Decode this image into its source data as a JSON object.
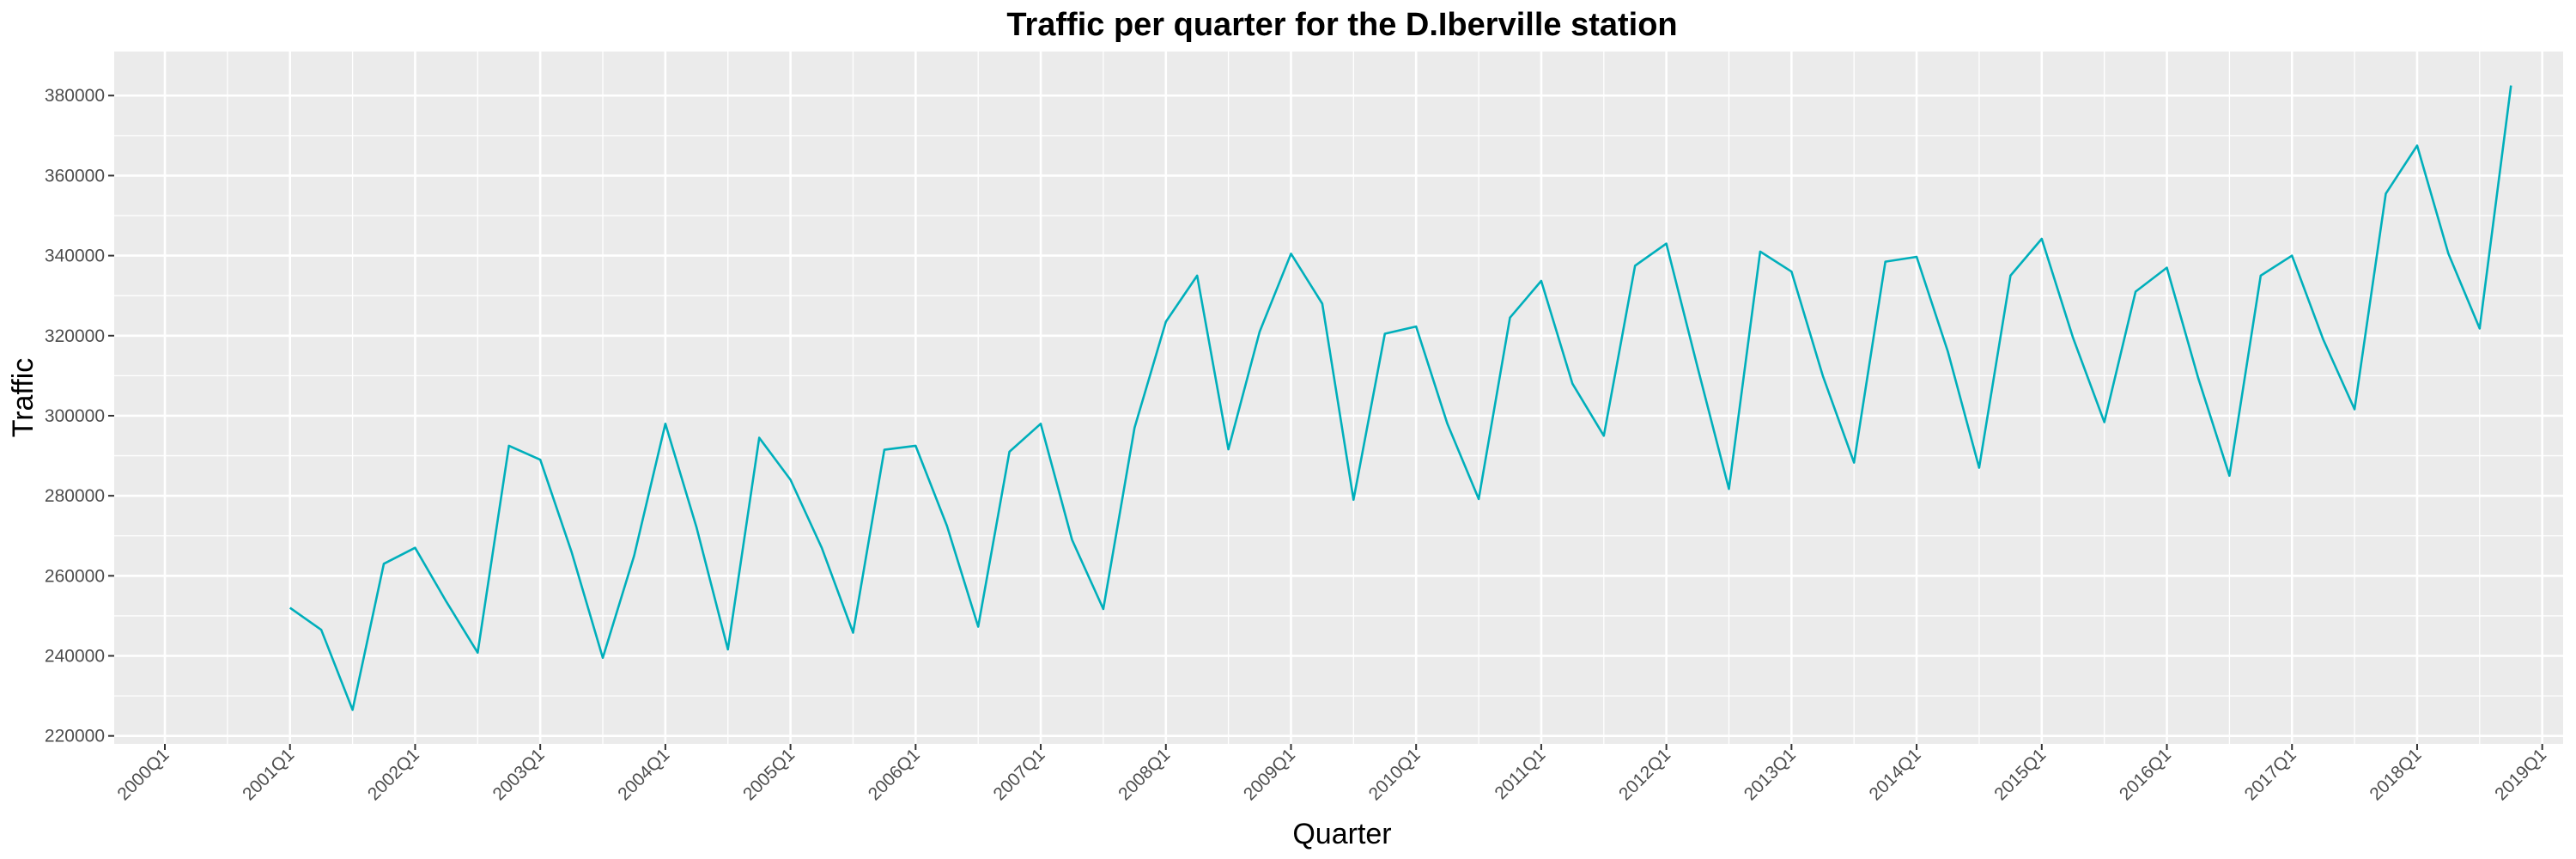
{
  "chart_data": {
    "type": "line",
    "title": "Traffic per quarter for the D.Iberville station",
    "xlabel": "Quarter",
    "ylabel": "Traffic",
    "ylim": [
      218000,
      391000
    ],
    "yticks": [
      220000,
      240000,
      260000,
      280000,
      300000,
      320000,
      340000,
      360000,
      380000
    ],
    "ytick_labels": [
      "220000",
      "240000",
      "260000",
      "280000",
      "300000",
      "320000",
      "340000",
      "360000",
      "380000"
    ],
    "xtick_labels": [
      "2000Q1",
      "2001Q1",
      "2002Q1",
      "2003Q1",
      "2004Q1",
      "2005Q1",
      "2006Q1",
      "2007Q1",
      "2008Q1",
      "2009Q1",
      "2010Q1",
      "2011Q1",
      "2012Q1",
      "2013Q1",
      "2014Q1",
      "2015Q1",
      "2016Q1",
      "2017Q1",
      "2018Q1",
      "2019Q1"
    ],
    "grid": true,
    "background": "#EBEBEB",
    "line_color": "#00AFBB",
    "x": [
      "2001Q1",
      "2001Q2",
      "2001Q3",
      "2001Q4",
      "2002Q1",
      "2002Q2",
      "2002Q3",
      "2002Q4",
      "2003Q1",
      "2003Q2",
      "2003Q3",
      "2003Q4",
      "2004Q1",
      "2004Q2",
      "2004Q3",
      "2004Q4",
      "2005Q1",
      "2005Q2",
      "2005Q3",
      "2005Q4",
      "2006Q1",
      "2006Q2",
      "2006Q3",
      "2006Q4",
      "2007Q1",
      "2007Q2",
      "2007Q3",
      "2007Q4",
      "2008Q1",
      "2008Q2",
      "2008Q3",
      "2008Q4",
      "2009Q1",
      "2009Q2",
      "2009Q3",
      "2009Q4",
      "2010Q1",
      "2010Q2",
      "2010Q3",
      "2010Q4",
      "2011Q1",
      "2011Q2",
      "2011Q3",
      "2011Q4",
      "2012Q1",
      "2012Q2",
      "2012Q3",
      "2012Q4",
      "2013Q1",
      "2013Q2",
      "2013Q3",
      "2013Q4",
      "2014Q1",
      "2014Q2",
      "2014Q3",
      "2014Q4",
      "2015Q1",
      "2015Q2",
      "2015Q3",
      "2015Q4",
      "2016Q1",
      "2016Q2",
      "2016Q3",
      "2016Q4",
      "2017Q1",
      "2017Q2",
      "2017Q3",
      "2017Q4",
      "2018Q1",
      "2018Q2",
      "2018Q3",
      "2018Q4"
    ],
    "values": [
      252000,
      246500,
      226500,
      263000,
      267000,
      253500,
      240800,
      292500,
      289000,
      266000,
      239500,
      265000,
      298000,
      272000,
      241600,
      294500,
      284000,
      267000,
      245800,
      291500,
      292500,
      272500,
      247300,
      291000,
      298000,
      269000,
      251700,
      297000,
      323500,
      335000,
      291600,
      321000,
      340500,
      328000,
      279000,
      320500,
      322300,
      298000,
      279200,
      324500,
      333700,
      308000,
      295000,
      337500,
      343000,
      312000,
      281700,
      341000,
      336000,
      310000,
      288300,
      338500,
      339700,
      316000,
      287000,
      335000,
      344200,
      319500,
      298400,
      331000,
      337000,
      309500,
      285000,
      335000,
      340000,
      319000,
      301600,
      355500,
      367500,
      340500,
      321800,
      382500
    ]
  }
}
